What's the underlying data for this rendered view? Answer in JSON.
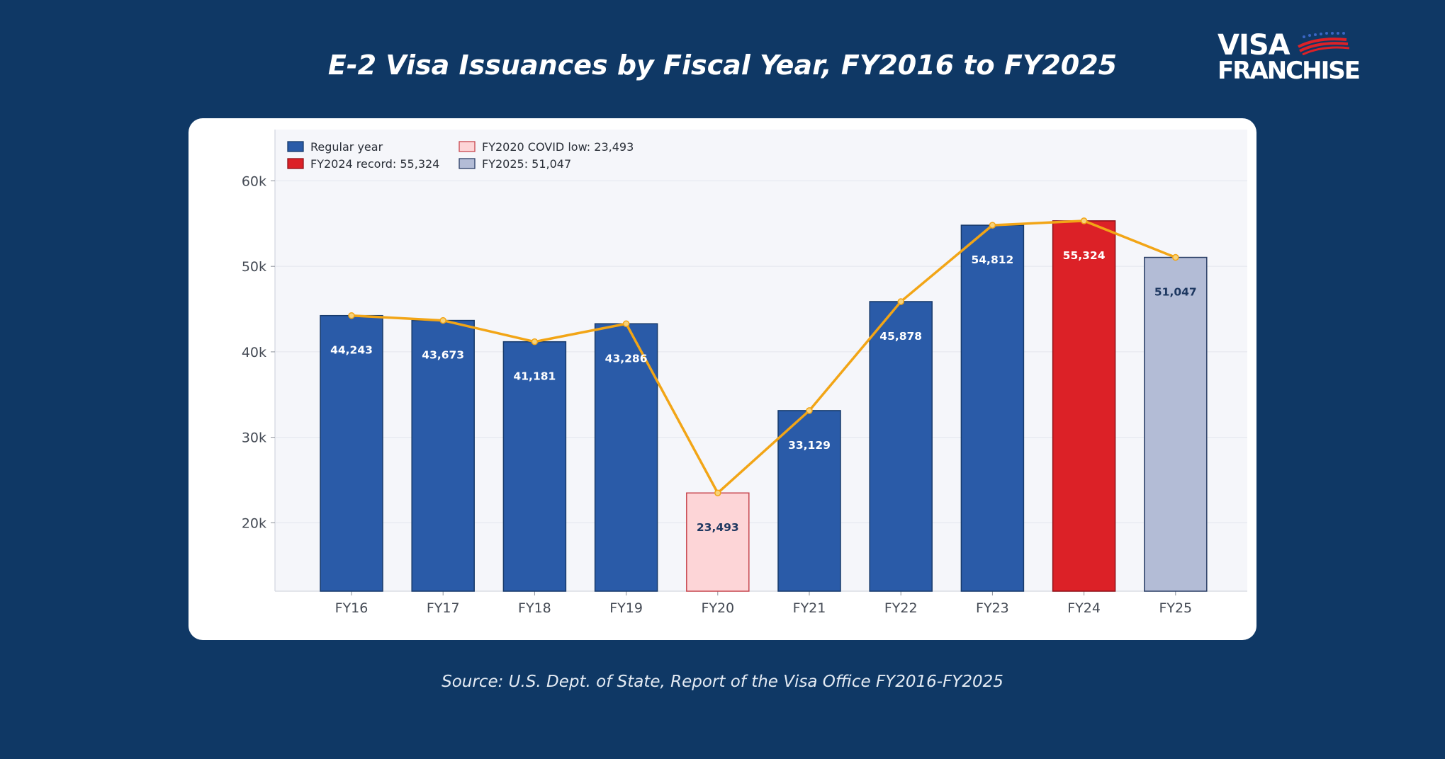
{
  "title": "E-2 Visa Issuances by Fiscal Year, FY2016 to FY2025",
  "source": "Source: U.S. Dept. of State, Report of the Visa Office FY2016-FY2025",
  "logo": {
    "line1": "VISA",
    "line2": "FRANCHISE"
  },
  "colors": {
    "background": "#0f3865",
    "regular": "#2a5ba8",
    "record": "#dc2127",
    "covid": "#fdd5d7",
    "fy2025": "#b3bcd6",
    "line": "#f2a516"
  },
  "chart_data": {
    "type": "bar",
    "categories": [
      "FY16",
      "FY17",
      "FY18",
      "FY19",
      "FY20",
      "FY21",
      "FY22",
      "FY23",
      "FY24",
      "FY25"
    ],
    "values": [
      44243,
      43673,
      41181,
      43286,
      23493,
      33129,
      45878,
      54812,
      55324,
      51047
    ],
    "data_labels": [
      "44,243",
      "43,673",
      "41,181",
      "43,286",
      "23,493",
      "33,129",
      "45,878",
      "54,812",
      "55,324",
      "51,047"
    ],
    "bar_kind": [
      "regular",
      "regular",
      "regular",
      "regular",
      "covid",
      "regular",
      "regular",
      "regular",
      "record",
      "fy2025"
    ],
    "overlay_line": true,
    "yticks": [
      20000,
      30000,
      40000,
      50000,
      60000
    ],
    "ytick_labels": [
      "20k",
      "30k",
      "40k",
      "50k",
      "60k"
    ],
    "ylim": [
      12000,
      66000
    ],
    "grid": true,
    "legend_position": "top-left",
    "legend": [
      {
        "key": "regular",
        "label": "Regular year"
      },
      {
        "key": "covid",
        "label": "FY2020 COVID low: 23,493"
      },
      {
        "key": "record",
        "label": "FY2024 record: 55,324"
      },
      {
        "key": "fy2025",
        "label": "FY2025: 51,047"
      }
    ],
    "xlabel": "",
    "ylabel": ""
  }
}
